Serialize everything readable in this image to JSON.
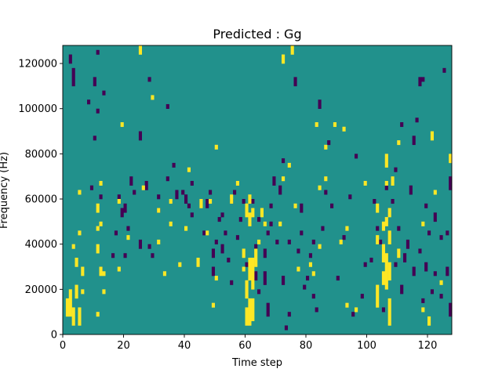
{
  "chart_data": {
    "type": "heatmap",
    "title": "Predicted : Gg",
    "xlabel": "Time step",
    "ylabel": "Frequency (Hz)",
    "xlim": [
      0,
      128
    ],
    "ylim": [
      0,
      128000
    ],
    "xticks": [
      0,
      20,
      40,
      60,
      80,
      100,
      120
    ],
    "yticks": [
      0,
      20000,
      40000,
      60000,
      80000,
      100000,
      120000
    ],
    "n_time_steps": 128,
    "n_freq_bins": 128,
    "color_levels": {
      "low": "#440154",
      "mid": "#21918c",
      "high": "#fde725"
    },
    "background_level": "mid",
    "cells": {
      "high": [
        [
          1,
          8,
          16
        ],
        [
          2,
          8,
          20
        ],
        [
          3,
          4,
          12
        ],
        [
          3,
          38,
          40
        ],
        [
          4,
          16,
          22
        ],
        [
          4,
          30,
          34
        ],
        [
          5,
          4,
          12
        ],
        [
          5,
          44,
          46
        ],
        [
          5,
          62,
          64
        ],
        [
          6,
          18,
          20
        ],
        [
          6,
          26,
          30
        ],
        [
          11,
          8,
          10
        ],
        [
          11,
          36,
          40
        ],
        [
          11,
          46,
          48
        ],
        [
          11,
          54,
          58
        ],
        [
          12,
          26,
          30
        ],
        [
          12,
          48,
          50
        ],
        [
          12,
          66,
          68
        ],
        [
          13,
          18,
          20
        ],
        [
          13,
          26,
          28
        ],
        [
          18,
          28,
          30
        ],
        [
          18,
          58,
          60
        ],
        [
          19,
          92,
          94
        ],
        [
          21,
          42,
          44
        ],
        [
          25,
          128,
          124
        ],
        [
          26,
          64,
          66
        ],
        [
          29,
          104,
          106
        ],
        [
          31,
          40,
          42
        ],
        [
          31,
          54,
          56
        ],
        [
          33,
          26,
          28
        ],
        [
          35,
          48,
          50
        ],
        [
          35,
          58,
          60
        ],
        [
          38,
          30,
          32
        ],
        [
          40,
          46,
          48
        ],
        [
          41,
          72,
          74
        ],
        [
          44,
          30,
          34
        ],
        [
          45,
          56,
          60
        ],
        [
          47,
          44,
          46
        ],
        [
          48,
          58,
          60
        ],
        [
          49,
          12,
          14
        ],
        [
          50,
          82,
          84
        ],
        [
          50,
          24,
          26
        ],
        [
          55,
          58,
          62
        ],
        [
          57,
          66,
          68
        ],
        [
          59,
          28,
          30
        ],
        [
          59,
          34,
          38
        ],
        [
          60,
          4,
          12
        ],
        [
          60,
          16,
          24
        ],
        [
          60,
          52,
          58
        ],
        [
          61,
          4,
          16
        ],
        [
          61,
          24,
          34
        ],
        [
          61,
          48,
          54
        ],
        [
          61,
          58,
          62
        ],
        [
          62,
          6,
          16
        ],
        [
          62,
          20,
          34
        ],
        [
          62,
          52,
          56
        ],
        [
          63,
          30,
          38
        ],
        [
          64,
          40,
          42
        ],
        [
          65,
          52,
          56
        ],
        [
          66,
          48,
          50
        ],
        [
          71,
          48,
          50
        ],
        [
          72,
          68,
          70
        ],
        [
          72,
          120,
          124
        ],
        [
          74,
          74,
          76
        ],
        [
          75,
          128,
          124
        ],
        [
          76,
          56,
          58
        ],
        [
          77,
          28,
          30
        ],
        [
          81,
          30,
          32
        ],
        [
          82,
          26,
          28
        ],
        [
          83,
          92,
          94
        ],
        [
          84,
          38,
          40
        ],
        [
          84,
          64,
          66
        ],
        [
          86,
          82,
          84
        ],
        [
          86,
          68,
          70
        ],
        [
          89,
          92,
          94
        ],
        [
          91,
          40,
          42
        ],
        [
          92,
          90,
          92
        ],
        [
          93,
          12,
          14
        ],
        [
          93,
          46,
          48
        ],
        [
          96,
          10,
          12
        ],
        [
          99,
          66,
          68
        ],
        [
          103,
          12,
          22
        ],
        [
          103,
          40,
          44
        ],
        [
          103,
          54,
          58
        ],
        [
          105,
          22,
          28
        ],
        [
          105,
          32,
          40
        ],
        [
          105,
          46,
          50
        ],
        [
          106,
          20,
          36
        ],
        [
          106,
          48,
          52
        ],
        [
          106,
          66,
          68
        ],
        [
          106,
          74,
          80
        ],
        [
          107,
          4,
          16
        ],
        [
          107,
          24,
          32
        ],
        [
          107,
          40,
          46
        ],
        [
          107,
          52,
          56
        ],
        [
          108,
          66,
          70
        ],
        [
          110,
          84,
          86
        ],
        [
          110,
          34,
          38
        ],
        [
          118,
          48,
          50
        ],
        [
          118,
          10,
          12
        ],
        [
          120,
          4,
          8
        ],
        [
          121,
          86,
          90
        ],
        [
          122,
          62,
          64
        ],
        [
          124,
          22,
          24
        ],
        [
          127,
          76,
          80
        ]
      ],
      "low": [
        [
          2,
          120,
          124
        ],
        [
          3,
          110,
          118
        ],
        [
          8,
          102,
          104
        ],
        [
          9,
          64,
          66
        ],
        [
          10,
          110,
          114
        ],
        [
          10,
          86,
          88
        ],
        [
          11,
          98,
          100
        ],
        [
          11,
          124,
          126
        ],
        [
          12,
          28,
          30
        ],
        [
          12,
          60,
          62
        ],
        [
          13,
          106,
          108
        ],
        [
          16,
          34,
          36
        ],
        [
          17,
          44,
          46
        ],
        [
          18,
          60,
          62
        ],
        [
          19,
          52,
          56
        ],
        [
          20,
          54,
          58
        ],
        [
          20,
          34,
          36
        ],
        [
          21,
          46,
          48
        ],
        [
          22,
          66,
          70
        ],
        [
          23,
          62,
          64
        ],
        [
          25,
          38,
          42
        ],
        [
          25,
          86,
          90
        ],
        [
          27,
          64,
          68
        ],
        [
          28,
          38,
          40
        ],
        [
          28,
          112,
          114
        ],
        [
          29,
          34,
          36
        ],
        [
          31,
          60,
          62
        ],
        [
          31,
          54,
          56
        ],
        [
          34,
          68,
          70
        ],
        [
          34,
          100,
          102
        ],
        [
          36,
          74,
          76
        ],
        [
          37,
          60,
          64
        ],
        [
          39,
          62,
          64
        ],
        [
          40,
          58,
          62
        ],
        [
          41,
          56,
          58
        ],
        [
          42,
          52,
          54
        ],
        [
          42,
          66,
          68
        ],
        [
          46,
          44,
          46
        ],
        [
          47,
          56,
          60
        ],
        [
          48,
          62,
          64
        ],
        [
          49,
          26,
          30
        ],
        [
          49,
          34,
          38
        ],
        [
          50,
          40,
          42
        ],
        [
          51,
          50,
          52
        ],
        [
          52,
          52,
          54
        ],
        [
          52,
          36,
          40
        ],
        [
          53,
          44,
          46
        ],
        [
          54,
          32,
          34
        ],
        [
          55,
          22,
          24
        ],
        [
          55,
          58,
          60
        ],
        [
          56,
          62,
          64
        ],
        [
          57,
          42,
          44
        ],
        [
          58,
          50,
          52
        ],
        [
          59,
          58,
          60
        ],
        [
          60,
          30,
          32
        ],
        [
          62,
          58,
          60
        ],
        [
          63,
          24,
          28
        ],
        [
          63,
          38,
          40
        ],
        [
          64,
          18,
          20
        ],
        [
          64,
          50,
          52
        ],
        [
          66,
          22,
          28
        ],
        [
          66,
          34,
          38
        ],
        [
          67,
          8,
          14
        ],
        [
          67,
          44,
          46
        ],
        [
          68,
          48,
          50
        ],
        [
          68,
          56,
          58
        ],
        [
          69,
          66,
          70
        ],
        [
          70,
          40,
          42
        ],
        [
          71,
          62,
          66
        ],
        [
          72,
          22,
          26
        ],
        [
          72,
          76,
          78
        ],
        [
          73,
          2,
          4
        ],
        [
          74,
          8,
          10
        ],
        [
          74,
          40,
          42
        ],
        [
          76,
          110,
          114
        ],
        [
          77,
          36,
          38
        ],
        [
          78,
          44,
          46
        ],
        [
          78,
          54,
          58
        ],
        [
          79,
          20,
          22
        ],
        [
          80,
          24,
          26
        ],
        [
          81,
          34,
          36
        ],
        [
          82,
          16,
          18
        ],
        [
          82,
          40,
          42
        ],
        [
          83,
          10,
          12
        ],
        [
          84,
          100,
          104
        ],
        [
          85,
          46,
          48
        ],
        [
          86,
          62,
          64
        ],
        [
          87,
          84,
          86
        ],
        [
          88,
          56,
          58
        ],
        [
          90,
          24,
          26
        ],
        [
          92,
          42,
          44
        ],
        [
          94,
          60,
          62
        ],
        [
          95,
          8,
          10
        ],
        [
          96,
          78,
          80
        ],
        [
          98,
          16,
          18
        ],
        [
          99,
          30,
          32
        ],
        [
          101,
          32,
          34
        ],
        [
          102,
          58,
          60
        ],
        [
          103,
          46,
          48
        ],
        [
          104,
          40,
          42
        ],
        [
          105,
          10,
          12
        ],
        [
          106,
          64,
          66
        ],
        [
          108,
          58,
          60
        ],
        [
          109,
          30,
          32
        ],
        [
          109,
          72,
          74
        ],
        [
          110,
          46,
          48
        ],
        [
          111,
          92,
          94
        ],
        [
          111,
          18,
          22
        ],
        [
          112,
          32,
          36
        ],
        [
          113,
          38,
          42
        ],
        [
          114,
          62,
          66
        ],
        [
          115,
          26,
          30
        ],
        [
          115,
          84,
          88
        ],
        [
          116,
          94,
          96
        ],
        [
          117,
          110,
          114
        ],
        [
          117,
          36,
          38
        ],
        [
          118,
          112,
          114
        ],
        [
          118,
          14,
          16
        ],
        [
          119,
          56,
          58
        ],
        [
          119,
          28,
          32
        ],
        [
          120,
          44,
          46
        ],
        [
          121,
          18,
          20
        ],
        [
          122,
          26,
          28
        ],
        [
          122,
          50,
          54
        ],
        [
          124,
          16,
          18
        ],
        [
          124,
          42,
          44
        ],
        [
          125,
          116,
          118
        ],
        [
          126,
          26,
          30
        ],
        [
          126,
          44,
          46
        ],
        [
          127,
          8,
          14
        ],
        [
          127,
          64,
          70
        ]
      ]
    }
  }
}
